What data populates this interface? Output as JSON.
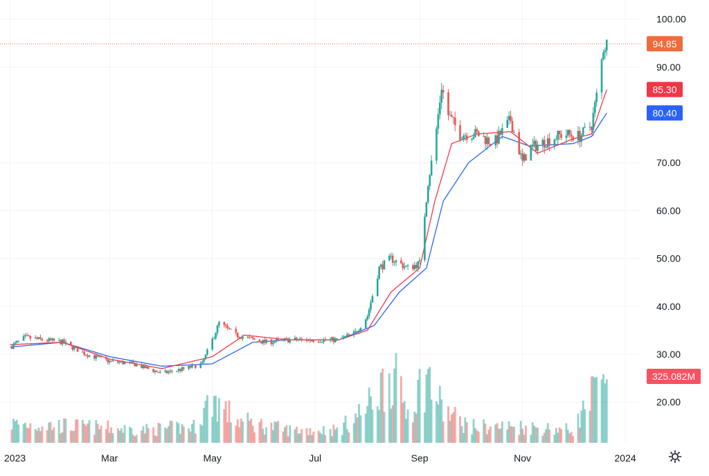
{
  "chart_data": {
    "type": "candlestick",
    "y_axis": {
      "ticks": [
        "100.00",
        "90.00",
        "70.00",
        "60.00",
        "50.00",
        "40.00",
        "30.00",
        "20.00"
      ],
      "tick_values": [
        100,
        90,
        70,
        60,
        50,
        40,
        30,
        20
      ],
      "range": [
        11.5,
        104
      ],
      "position": "right"
    },
    "x_axis": {
      "ticks": [
        "2023",
        "Mar",
        "May",
        "Jul",
        "Sep",
        "Nov",
        "2024"
      ],
      "tick_dates": [
        "2023-01-01",
        "2023-03-01",
        "2023-05-01",
        "2023-07-01",
        "2023-09-01",
        "2023-11-01",
        "2024-01-01"
      ],
      "range": [
        "2022-12-26",
        "2024-01-10"
      ]
    },
    "grid": true,
    "badges": [
      {
        "label": "94.85",
        "value": 94.85,
        "color": "#ef6c3a",
        "role": "last-price"
      },
      {
        "label": "85.30",
        "value": 85.3,
        "color": "#f23645",
        "role": "ma-fast"
      },
      {
        "label": "80.40",
        "value": 80.4,
        "color": "#2962ff",
        "role": "ma-slow"
      },
      {
        "label": "325.082M",
        "value": 325.082,
        "color": "#f7525f",
        "role": "volume"
      }
    ],
    "last_price_line": 94.85,
    "price_path": [
      [
        "2023-01-01",
        31.5
      ],
      [
        "2023-01-10",
        33.5
      ],
      [
        "2023-01-20",
        33.0
      ],
      [
        "2023-02-01",
        32.5
      ],
      [
        "2023-02-15",
        30.0
      ],
      [
        "2023-03-01",
        28.5
      ],
      [
        "2023-03-15",
        28.0
      ],
      [
        "2023-04-01",
        26.0
      ],
      [
        "2023-04-15",
        27.0
      ],
      [
        "2023-04-25",
        28.0
      ],
      [
        "2023-05-01",
        33.0
      ],
      [
        "2023-05-05",
        36.5
      ],
      [
        "2023-05-15",
        34.0
      ],
      [
        "2023-06-01",
        32.5
      ],
      [
        "2023-06-15",
        33.0
      ],
      [
        "2023-07-01",
        33.0
      ],
      [
        "2023-07-15",
        33.0
      ],
      [
        "2023-07-25",
        34.5
      ],
      [
        "2023-08-01",
        38.0
      ],
      [
        "2023-08-08",
        48.0
      ],
      [
        "2023-08-15",
        50.0
      ],
      [
        "2023-08-25",
        48.0
      ],
      [
        "2023-09-01",
        49.0
      ],
      [
        "2023-09-06",
        66.0
      ],
      [
        "2023-09-10",
        74.0
      ],
      [
        "2023-09-14",
        86.0
      ],
      [
        "2023-09-18",
        80.0
      ],
      [
        "2023-09-25",
        76.0
      ],
      [
        "2023-10-05",
        76.0
      ],
      [
        "2023-10-15",
        74.0
      ],
      [
        "2023-10-25",
        79.0
      ],
      [
        "2023-11-01",
        70.0
      ],
      [
        "2023-11-05",
        73.0
      ],
      [
        "2023-11-15",
        74.5
      ],
      [
        "2023-11-25",
        76.0
      ],
      [
        "2023-12-05",
        75.5
      ],
      [
        "2023-12-12",
        78.0
      ],
      [
        "2023-12-16",
        86.0
      ],
      [
        "2023-12-19",
        94.0
      ],
      [
        "2023-12-21",
        94.85
      ]
    ],
    "ma_fast": [
      [
        "2023-01-01",
        32.0
      ],
      [
        "2023-02-01",
        32.5
      ],
      [
        "2023-03-01",
        29.0
      ],
      [
        "2023-04-01",
        27.0
      ],
      [
        "2023-05-01",
        29.5
      ],
      [
        "2023-05-20",
        34.0
      ],
      [
        "2023-06-15",
        33.0
      ],
      [
        "2023-07-15",
        33.0
      ],
      [
        "2023-08-01",
        35.0
      ],
      [
        "2023-08-15",
        43.0
      ],
      [
        "2023-09-01",
        48.0
      ],
      [
        "2023-09-10",
        62.0
      ],
      [
        "2023-09-20",
        74.0
      ],
      [
        "2023-10-05",
        76.0
      ],
      [
        "2023-10-25",
        76.5
      ],
      [
        "2023-11-10",
        72.0
      ],
      [
        "2023-12-01",
        75.0
      ],
      [
        "2023-12-12",
        76.0
      ],
      [
        "2023-12-21",
        85.3
      ]
    ],
    "ma_slow": [
      [
        "2023-01-01",
        31.5
      ],
      [
        "2023-02-01",
        32.5
      ],
      [
        "2023-03-01",
        29.5
      ],
      [
        "2023-04-01",
        27.5
      ],
      [
        "2023-05-01",
        28.0
      ],
      [
        "2023-05-25",
        32.5
      ],
      [
        "2023-06-15",
        33.0
      ],
      [
        "2023-07-15",
        33.0
      ],
      [
        "2023-08-05",
        36.0
      ],
      [
        "2023-08-20",
        43.0
      ],
      [
        "2023-09-05",
        48.0
      ],
      [
        "2023-09-15",
        62.0
      ],
      [
        "2023-09-30",
        70.0
      ],
      [
        "2023-10-20",
        75.5
      ],
      [
        "2023-11-05",
        73.5
      ],
      [
        "2023-12-01",
        74.0
      ],
      [
        "2023-12-12",
        75.5
      ],
      [
        "2023-12-21",
        80.4
      ]
    ],
    "volume_pattern": [
      [
        "2023-01-01",
        6
      ],
      [
        "2023-02-15",
        5
      ],
      [
        "2023-03-20",
        4
      ],
      [
        "2023-04-20",
        5
      ],
      [
        "2023-05-01",
        14
      ],
      [
        "2023-05-15",
        7
      ],
      [
        "2023-06-15",
        4
      ],
      [
        "2023-07-15",
        4
      ],
      [
        "2023-08-01",
        11
      ],
      [
        "2023-08-15",
        22
      ],
      [
        "2023-08-25",
        10
      ],
      [
        "2023-09-05",
        21
      ],
      [
        "2023-09-15",
        10
      ],
      [
        "2023-10-01",
        5
      ],
      [
        "2023-11-01",
        5
      ],
      [
        "2023-12-01",
        4
      ],
      [
        "2023-12-15",
        17
      ],
      [
        "2023-12-21",
        15
      ]
    ]
  }
}
